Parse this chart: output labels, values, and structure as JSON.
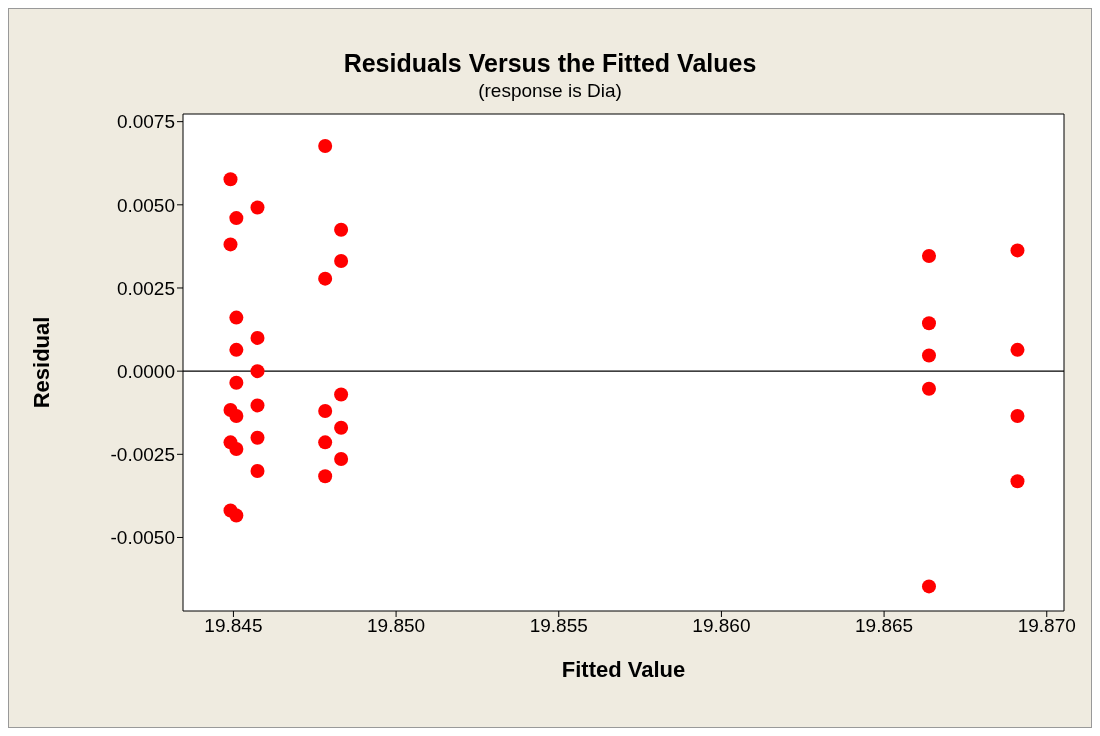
{
  "chart_data": {
    "type": "scatter",
    "title": "Residuals Versus the Fitted Values",
    "subtitle": "(response is Dia)",
    "xlabel": "Fitted Value",
    "ylabel": "Residual",
    "x": [
      19.84491,
      19.84491,
      19.84491,
      19.84491,
      19.84491,
      19.84509,
      19.84509,
      19.84509,
      19.84509,
      19.84509,
      19.84509,
      19.84509,
      19.84574,
      19.84574,
      19.84574,
      19.84574,
      19.84574,
      19.84574,
      19.84782,
      19.84782,
      19.84782,
      19.84782,
      19.84782,
      19.84831,
      19.84831,
      19.84831,
      19.84831,
      19.84831,
      19.86638,
      19.86638,
      19.86638,
      19.86638,
      19.86638,
      19.8691,
      19.8691,
      19.8691,
      19.8691
    ],
    "series": [
      {
        "color": "#ff0000",
        "values": [
          0.00577,
          0.00381,
          -0.00117,
          -0.00214,
          -0.00419,
          0.0046,
          0.00161,
          0.00064,
          -0.00035,
          -0.00135,
          -0.00234,
          -0.00434,
          0.00492,
          0.001,
          0,
          -0.00103,
          -0.002,
          -0.003,
          0.00677,
          0.00278,
          -0.0012,
          -0.00214,
          -0.00316,
          0.00425,
          0.00331,
          -0.0007,
          -0.0017,
          -0.00264,
          0.00346,
          0.00144,
          0.00047,
          -0.00053,
          -0.00647,
          0.00363,
          0.00064,
          -0.00135,
          -0.00331
        ]
      }
    ],
    "xlim": [
      19.84345,
      19.87053
    ],
    "xticks": [
      {
        "value": 19.845,
        "label": "19.845"
      },
      {
        "value": 19.85,
        "label": "19.850"
      },
      {
        "value": 19.855,
        "label": "19.855"
      },
      {
        "value": 19.86,
        "label": "19.860"
      },
      {
        "value": 19.865,
        "label": "19.865"
      },
      {
        "value": 19.87,
        "label": "19.870"
      }
    ],
    "ylim": [
      -0.00721,
      0.00773
    ],
    "yticks": [
      {
        "value": -0.005,
        "label": "-0.0050"
      },
      {
        "value": -0.0025,
        "label": "-0.0025"
      },
      {
        "value": 0,
        "label": "0.0000"
      },
      {
        "value": 0.0025,
        "label": "0.0025"
      },
      {
        "value": 0.005,
        "label": "0.0050"
      },
      {
        "value": 0.0075,
        "label": "0.0075"
      }
    ],
    "ref_lines": [
      {
        "axis": "y",
        "value": 0,
        "color": "#000000"
      }
    ],
    "grid": false,
    "legend": false,
    "marker": "circle"
  }
}
